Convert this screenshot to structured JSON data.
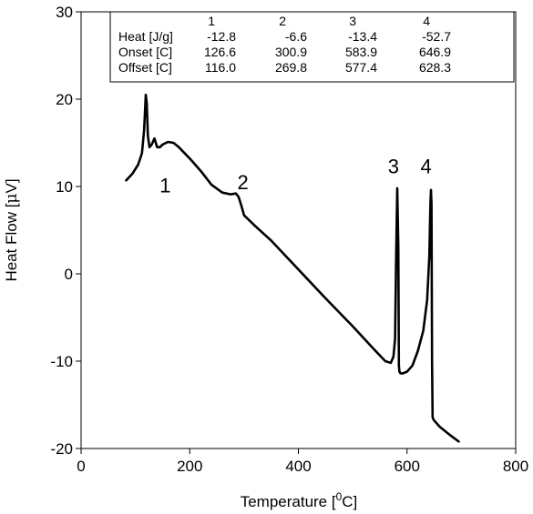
{
  "chart_data": {
    "type": "line",
    "title": "",
    "xlabel": "Temperature [",
    "xlabel_sup": "0",
    "xlabel_end": "C]",
    "ylabel_pre": "Heat Flow [",
    "ylabel_mu": "μ",
    "ylabel_end": "V]",
    "xlim": [
      0,
      800
    ],
    "ylim": [
      -20,
      30
    ],
    "xticks": [
      0,
      200,
      400,
      600,
      800
    ],
    "yticks": [
      -20,
      -10,
      0,
      10,
      20,
      30
    ],
    "grid": false,
    "series": [
      {
        "color": "#000000",
        "x": [
          83,
          95,
          105,
          112,
          116,
          119,
          121,
          123,
          126,
          130,
          135,
          140,
          145,
          150,
          160,
          170,
          180,
          200,
          220,
          240,
          260,
          275,
          285,
          290,
          295,
          300,
          320,
          350,
          400,
          450,
          500,
          540,
          560,
          570,
          575,
          578,
          580,
          582,
          584,
          585,
          586,
          588,
          592,
          600,
          610,
          620,
          630,
          637,
          641,
          643,
          644,
          645,
          646,
          647,
          648,
          650,
          660,
          680,
          695
        ],
        "y": [
          10.7,
          11.5,
          12.5,
          13.8,
          16.5,
          20.5,
          19.5,
          15.8,
          14.5,
          14.8,
          15.5,
          14.5,
          14.5,
          14.8,
          15.1,
          15.0,
          14.5,
          13.2,
          11.8,
          10.2,
          9.3,
          9.1,
          9.2,
          8.8,
          7.8,
          6.7,
          5.5,
          3.8,
          0.5,
          -2.8,
          -6.0,
          -8.7,
          -10.0,
          -10.2,
          -9.5,
          -7.5,
          2.0,
          9.8,
          3.0,
          -10.5,
          -11.2,
          -11.4,
          -11.4,
          -11.2,
          -10.5,
          -8.8,
          -6.5,
          -3.0,
          2.0,
          8.0,
          9.6,
          8.0,
          -10.0,
          -16.4,
          -16.6,
          -16.8,
          -17.5,
          -18.5,
          -19.2
        ]
      }
    ],
    "annotations": [
      {
        "text": "1",
        "x": 155,
        "y": 9.3
      },
      {
        "text": "2",
        "x": 298,
        "y": 9.7
      },
      {
        "text": "3",
        "x": 575,
        "y": 11.5
      },
      {
        "text": "4",
        "x": 635,
        "y": 11.5
      }
    ],
    "table": {
      "columns": [
        "1",
        "2",
        "3",
        "4"
      ],
      "rows": [
        {
          "label": "Heat [J/g]",
          "values": [
            "-12.8",
            "-6.6",
            "-13.4",
            "-52.7"
          ]
        },
        {
          "label": "Onset [C]",
          "values": [
            "126.6",
            "300.9",
            "583.9",
            "646.9"
          ]
        },
        {
          "label": "Offset [C]",
          "values": [
            "116.0",
            "269.8",
            "577.4",
            "628.3"
          ]
        }
      ]
    }
  }
}
